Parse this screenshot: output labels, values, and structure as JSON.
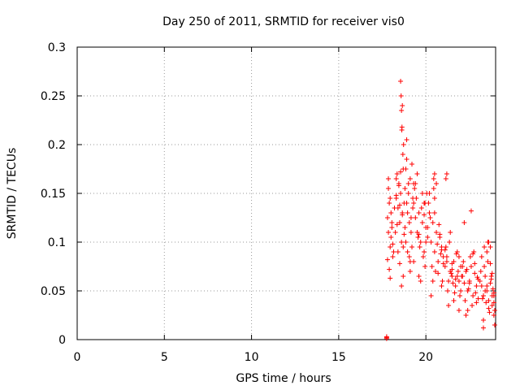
{
  "chart_data": {
    "type": "scatter",
    "title": "Day 250 of 2011, SRMTID for receiver vis0",
    "xlabel": "GPS time / hours",
    "ylabel": "SRMTID / TECUs",
    "xlim": [
      0,
      24
    ],
    "ylim": [
      0,
      0.3
    ],
    "x_ticks": [
      0,
      5,
      10,
      15,
      20
    ],
    "x_tick_labels": [
      "0",
      "5",
      "10",
      "15",
      "20"
    ],
    "y_ticks": [
      0,
      0.05,
      0.1,
      0.15,
      0.2,
      0.25,
      0.3
    ],
    "y_tick_labels": [
      "0",
      "0.05",
      "0.1",
      "0.15",
      "0.2",
      "0.25",
      "0.3"
    ],
    "grid": true,
    "marker": "plus",
    "color": "#ff0000",
    "series": [
      {
        "name": "vis0",
        "x": [
          17.75,
          17.75,
          17.75,
          17.8,
          17.85,
          17.9,
          17.95,
          18.0,
          18.05,
          17.8,
          17.9,
          18.0,
          18.1,
          17.85,
          17.95,
          18.05,
          18.15,
          18.2,
          17.85,
          17.95,
          18.1,
          18.25,
          18.3,
          18.35,
          18.4,
          18.45,
          18.5,
          18.55,
          18.6,
          18.65,
          18.7,
          18.75,
          18.3,
          18.4,
          18.5,
          18.6,
          18.7,
          18.35,
          18.45,
          18.55,
          18.65,
          18.75,
          18.3,
          18.5,
          18.7,
          18.55,
          18.58,
          18.6,
          18.62,
          18.65,
          18.63,
          18.68,
          18.72,
          18.8,
          18.85,
          18.9,
          18.95,
          19.0,
          19.05,
          19.1,
          19.15,
          19.2,
          19.25,
          18.85,
          18.95,
          19.05,
          19.15,
          19.25,
          18.8,
          18.9,
          19.0,
          19.1,
          19.2,
          18.9,
          19.1,
          19.3,
          19.3,
          19.4,
          19.5,
          19.6,
          19.7,
          19.8,
          19.9,
          20.0,
          19.35,
          19.45,
          19.55,
          19.65,
          19.75,
          19.85,
          19.95,
          19.4,
          19.6,
          19.8,
          20.0,
          19.5,
          19.7,
          19.9,
          19.3,
          19.6,
          19.9,
          20.1,
          20.2,
          20.3,
          20.4,
          20.5,
          20.6,
          20.7,
          20.8,
          20.9,
          21.0,
          20.15,
          20.25,
          20.35,
          20.45,
          20.55,
          20.65,
          20.75,
          20.85,
          20.95,
          20.2,
          20.4,
          20.6,
          20.8,
          21.0,
          20.3,
          20.5,
          20.7,
          20.9,
          20.1,
          20.5,
          20.9,
          21.1,
          21.2,
          21.3,
          21.4,
          21.5,
          21.6,
          21.7,
          21.8,
          21.9,
          22.0,
          21.15,
          21.25,
          21.35,
          21.45,
          21.55,
          21.65,
          21.75,
          21.85,
          21.95,
          21.2,
          21.4,
          21.6,
          21.8,
          22.0,
          21.3,
          21.5,
          21.7,
          21.9,
          21.1,
          21.5,
          21.9,
          22.1,
          22.2,
          22.3,
          22.4,
          22.5,
          22.6,
          22.7,
          22.8,
          22.9,
          23.0,
          22.15,
          22.25,
          22.35,
          22.45,
          22.55,
          22.65,
          22.75,
          22.85,
          22.95,
          22.2,
          22.4,
          22.6,
          22.8,
          23.0,
          22.3,
          22.5,
          22.7,
          22.9,
          23.1,
          23.2,
          23.3,
          23.4,
          23.5,
          23.6,
          23.7,
          23.8,
          23.9,
          23.95,
          23.15,
          23.25,
          23.35,
          23.45,
          23.55,
          23.65,
          23.75,
          23.85,
          23.9,
          23.2,
          23.4,
          23.6,
          23.8,
          23.3,
          23.5,
          23.7,
          23.9,
          22.05,
          22.1,
          20.45,
          20.5,
          19.95,
          20.05,
          21.15,
          21.2,
          23.3,
          23.35,
          23.5,
          23.55,
          23.6,
          23.7,
          23.75,
          23.8,
          23.9,
          23.95
        ],
        "y": [
          0.001,
          0.002,
          0.003,
          0.125,
          0.11,
          0.14,
          0.095,
          0.13,
          0.12,
          0.082,
          0.072,
          0.105,
          0.098,
          0.155,
          0.145,
          0.115,
          0.09,
          0.135,
          0.165,
          0.063,
          0.085,
          0.11,
          0.145,
          0.17,
          0.135,
          0.16,
          0.12,
          0.15,
          0.1,
          0.13,
          0.175,
          0.14,
          0.165,
          0.09,
          0.078,
          0.055,
          0.065,
          0.118,
          0.158,
          0.172,
          0.128,
          0.108,
          0.148,
          0.138,
          0.095,
          0.265,
          0.25,
          0.235,
          0.215,
          0.24,
          0.218,
          0.19,
          0.2,
          0.155,
          0.175,
          0.14,
          0.13,
          0.15,
          0.12,
          0.165,
          0.11,
          0.18,
          0.145,
          0.1,
          0.09,
          0.085,
          0.125,
          0.135,
          0.115,
          0.205,
          0.16,
          0.08,
          0.095,
          0.185,
          0.07,
          0.16,
          0.14,
          0.125,
          0.11,
          0.13,
          0.1,
          0.12,
          0.09,
          0.115,
          0.155,
          0.145,
          0.105,
          0.095,
          0.135,
          0.085,
          0.075,
          0.16,
          0.065,
          0.15,
          0.1,
          0.17,
          0.06,
          0.14,
          0.08,
          0.108,
          0.128,
          0.115,
          0.13,
          0.1,
          0.12,
          0.09,
          0.11,
          0.08,
          0.105,
          0.095,
          0.085,
          0.14,
          0.125,
          0.075,
          0.165,
          0.07,
          0.098,
          0.118,
          0.088,
          0.06,
          0.15,
          0.06,
          0.16,
          0.108,
          0.078,
          0.045,
          0.13,
          0.068,
          0.092,
          0.105,
          0.17,
          0.055,
          0.075,
          0.085,
          0.06,
          0.07,
          0.065,
          0.08,
          0.055,
          0.09,
          0.06,
          0.075,
          0.095,
          0.05,
          0.1,
          0.068,
          0.058,
          0.048,
          0.088,
          0.07,
          0.045,
          0.08,
          0.11,
          0.04,
          0.065,
          0.05,
          0.035,
          0.072,
          0.062,
          0.085,
          0.092,
          0.078,
          0.03,
          0.065,
          0.058,
          0.07,
          0.05,
          0.06,
          0.075,
          0.045,
          0.068,
          0.055,
          0.062,
          0.08,
          0.04,
          0.072,
          0.052,
          0.085,
          0.035,
          0.09,
          0.048,
          0.064,
          0.12,
          0.03,
          0.132,
          0.078,
          0.042,
          0.025,
          0.058,
          0.088,
          0.038,
          0.06,
          0.055,
          0.045,
          0.065,
          0.05,
          0.04,
          0.058,
          0.035,
          0.048,
          0.03,
          0.07,
          0.042,
          0.075,
          0.038,
          0.08,
          0.028,
          0.062,
          0.052,
          0.045,
          0.085,
          0.05,
          0.032,
          0.068,
          0.02,
          0.055,
          0.078,
          0.038,
          0.065,
          0.075,
          0.155,
          0.145,
          0.14,
          0.15,
          0.165,
          0.17,
          0.012,
          0.095,
          0.09,
          0.1,
          0.1,
          0.095,
          0.065,
          0.045,
          0.025,
          0.015
        ]
      }
    ]
  }
}
